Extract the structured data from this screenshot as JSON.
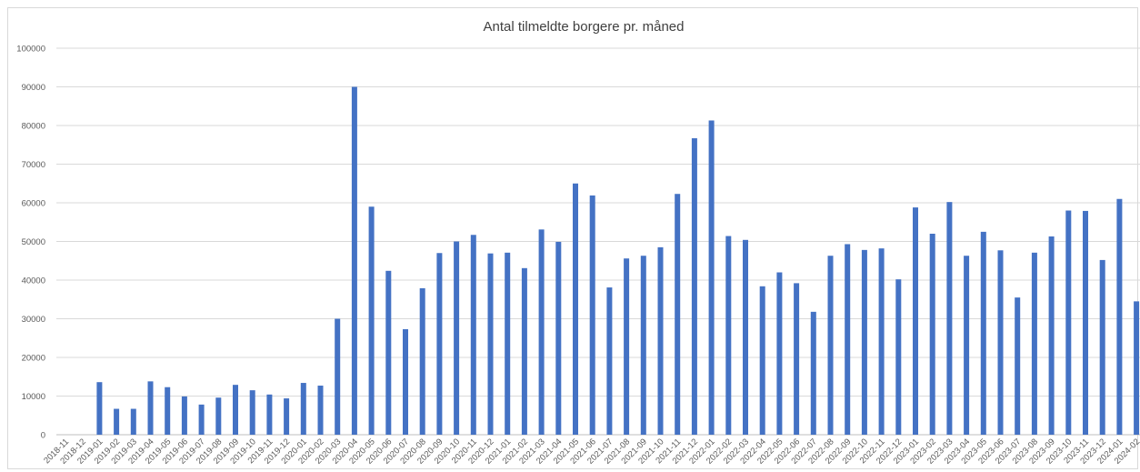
{
  "chart_data": {
    "type": "bar",
    "title": "Antal tilmeldte borgere pr. måned",
    "xlabel": "",
    "ylabel": "",
    "ylim": [
      0,
      100000
    ],
    "yticks": [
      "0",
      "10000",
      "20000",
      "30000",
      "40000",
      "50000",
      "60000",
      "70000",
      "80000",
      "90000",
      "100000"
    ],
    "grid": true,
    "legend": "none",
    "bar_color": "#4472c4",
    "categories": [
      "2018-11",
      "2018-12",
      "2019-01",
      "2019-02",
      "2019-03",
      "2019-04",
      "2019-05",
      "2019-06",
      "2019-07",
      "2019-08",
      "2019-09",
      "2019-10",
      "2019-11",
      "2019-12",
      "2020-01",
      "2020-02",
      "2020-03",
      "2020-04",
      "2020-05",
      "2020-06",
      "2020-07",
      "2020-08",
      "2020-09",
      "2020-10",
      "2020-11",
      "2020-12",
      "2021-01",
      "2021-02",
      "2021-03",
      "2021-04",
      "2021-05",
      "2021-06",
      "2021-07",
      "2021-08",
      "2021-09",
      "2021-10",
      "2021-11",
      "2021-12",
      "2022-01",
      "2022-02",
      "2022-03",
      "2022-04",
      "2022-05",
      "2022-06",
      "2022-07",
      "2022-08",
      "2022-09",
      "2022-10",
      "2022-11",
      "2022-12",
      "2023-01",
      "2023-02",
      "2023-03",
      "2023-04",
      "2023-05",
      "2023-06",
      "2023-07",
      "2023-08",
      "2023-09",
      "2023-10",
      "2023-11",
      "2023-12",
      "2024-01",
      "2024-02"
    ],
    "values": [
      0,
      0,
      13600,
      6700,
      6700,
      13800,
      12300,
      9900,
      7800,
      9600,
      12900,
      11500,
      10400,
      9400,
      13400,
      12700,
      30000,
      90000,
      59000,
      42400,
      27300,
      37900,
      47000,
      50000,
      51700,
      46900,
      47100,
      43100,
      53100,
      49900,
      65000,
      61900,
      38100,
      45600,
      46300,
      48500,
      62300,
      76700,
      81300,
      51400,
      50400,
      38400,
      42000,
      39200,
      31800,
      46300,
      49300,
      47800,
      48200,
      40200,
      58800,
      52000,
      60200,
      46300,
      52500,
      47700,
      35500,
      47100,
      51300,
      58000,
      57900,
      45200,
      61000,
      34500
    ]
  }
}
